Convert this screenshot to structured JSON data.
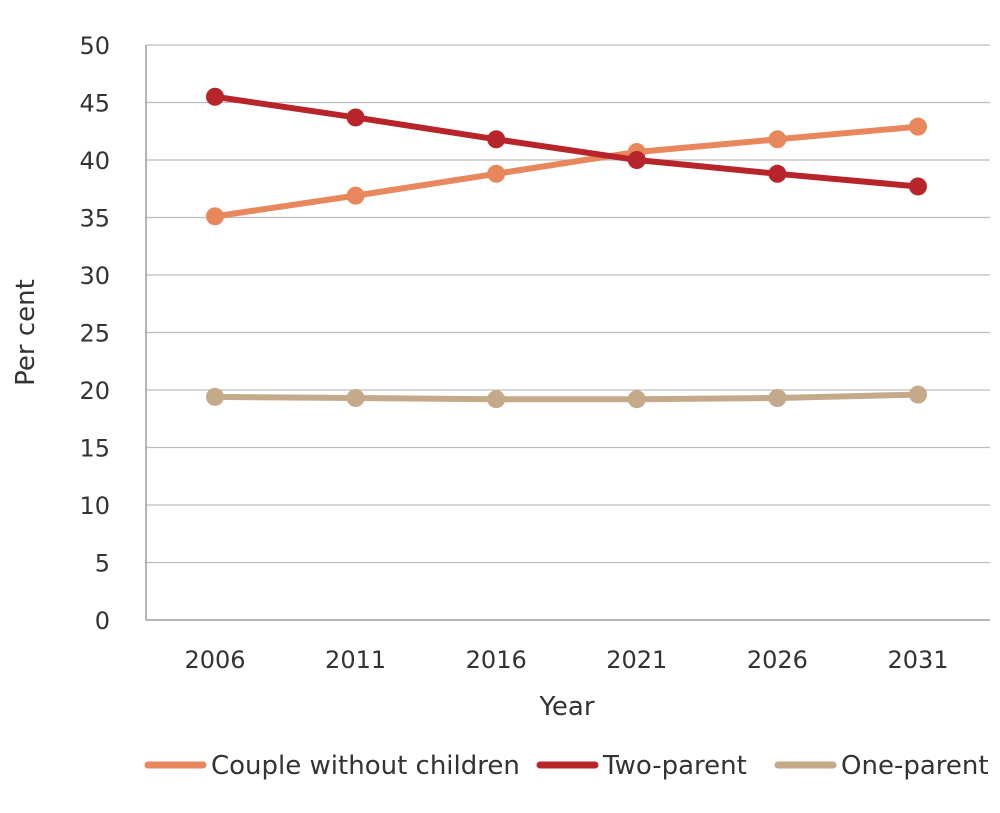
{
  "chart_data": {
    "type": "line",
    "title": "",
    "xlabel": "Year",
    "ylabel": "Per cent",
    "x": [
      "2006",
      "2011",
      "2016",
      "2021",
      "2026",
      "2031"
    ],
    "ylim": [
      0,
      50
    ],
    "yticks": [
      0,
      5,
      10,
      15,
      20,
      25,
      30,
      35,
      40,
      45,
      50
    ],
    "grid": true,
    "legend_position": "bottom",
    "series": [
      {
        "name": "Couple without children",
        "color": "#E8875B",
        "values": [
          35.1,
          36.9,
          38.8,
          40.7,
          41.8,
          42.9
        ]
      },
      {
        "name": "Two-parent",
        "color": "#B7252B",
        "values": [
          45.5,
          43.7,
          41.8,
          40.0,
          38.8,
          37.7
        ]
      },
      {
        "name": "One-parent",
        "color": "#C4A98A",
        "values": [
          19.4,
          19.3,
          19.2,
          19.2,
          19.3,
          19.6
        ]
      }
    ]
  }
}
